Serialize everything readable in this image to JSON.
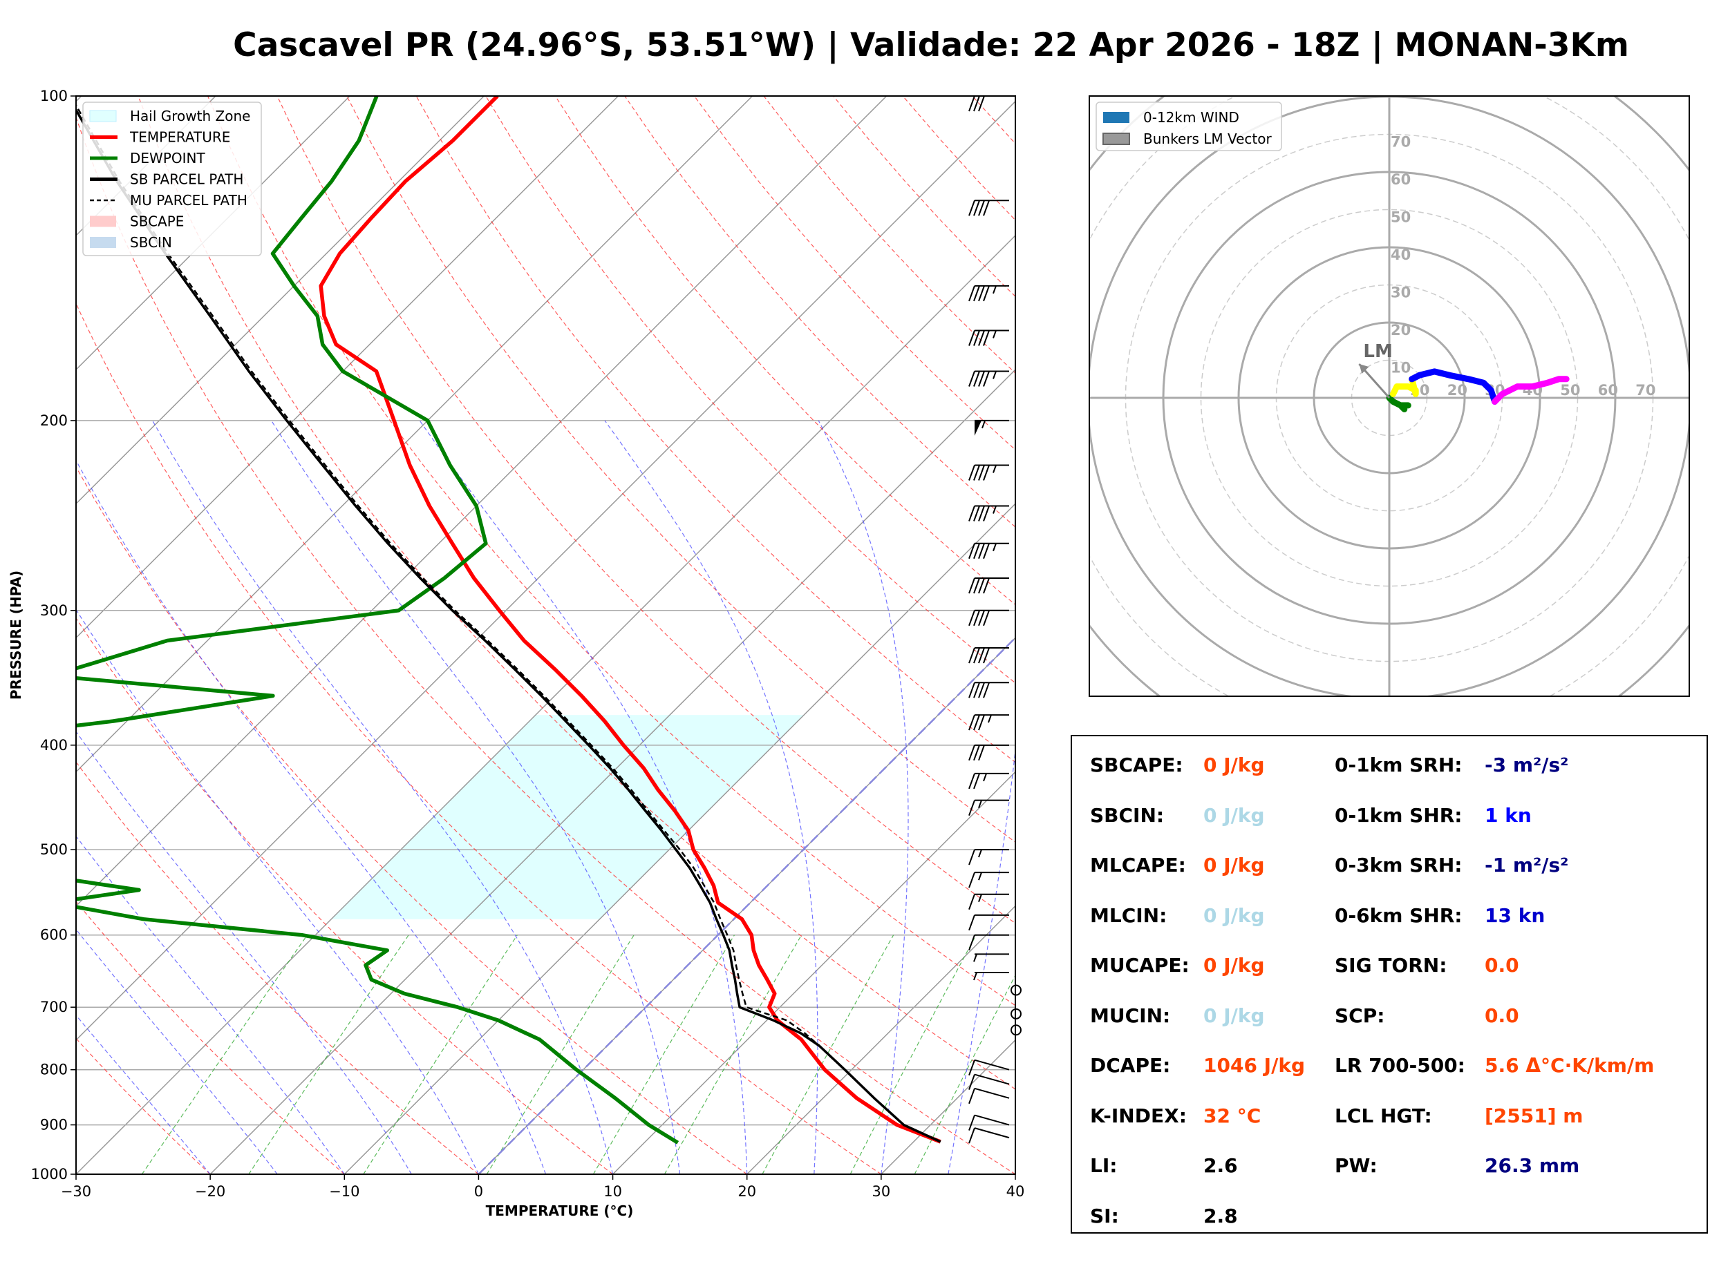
{
  "title": "Cascavel PR (24.96°S, 53.51°W) | Validade: 22 Apr 2026 - 18Z | MONAN-3Km",
  "skewt": {
    "xlabel": "TEMPERATURE (°C)",
    "ylabel": "PRESSURE (HPA)",
    "pressure_ticks": [
      "100",
      "200",
      "300",
      "400",
      "500",
      "600",
      "700",
      "800",
      "900",
      "1000"
    ],
    "temp_ticks": [
      "−30",
      "−20",
      "−10",
      "0",
      "10",
      "20",
      "30",
      "40"
    ],
    "legend": [
      {
        "label": "Hail Growth Zone",
        "color": "#e0ffff",
        "style": "patch"
      },
      {
        "label": "TEMPERATURE",
        "color": "#ff0000",
        "style": "line"
      },
      {
        "label": "DEWPOINT",
        "color": "#008000",
        "style": "line"
      },
      {
        "label": "SB PARCEL PATH",
        "color": "#000000",
        "style": "line"
      },
      {
        "label": "MU PARCEL PATH",
        "color": "#000000",
        "style": "dashed"
      },
      {
        "label": "SBCAPE",
        "color": "#ffcccc",
        "style": "patch"
      },
      {
        "label": "SBCIN",
        "color": "#c6dbef",
        "style": "patch"
      }
    ]
  },
  "hodograph": {
    "legend": [
      {
        "label": "0-12km WIND",
        "color": "#1f77b4"
      },
      {
        "label": "Bunkers LM Vector",
        "color": "#999999"
      }
    ],
    "ring_labels": [
      "10",
      "20",
      "30",
      "40",
      "50",
      "60",
      "70"
    ],
    "lm_label": "LM"
  },
  "params": {
    "left": [
      {
        "label": "SBCAPE:",
        "value": "0 J/kg",
        "color": "#ff4500"
      },
      {
        "label": "SBCIN:",
        "value": "0 J/kg",
        "color": "#add8e6"
      },
      {
        "label": "MLCAPE:",
        "value": "0 J/kg",
        "color": "#ff4500"
      },
      {
        "label": "MLCIN:",
        "value": "0 J/kg",
        "color": "#add8e6"
      },
      {
        "label": "MUCAPE:",
        "value": "0 J/kg",
        "color": "#ff4500"
      },
      {
        "label": "MUCIN:",
        "value": "0 J/kg",
        "color": "#add8e6"
      },
      {
        "label": "DCAPE:",
        "value": "1046 J/kg",
        "color": "#ff4500"
      },
      {
        "label": "K-INDEX:",
        "value": "32 °C",
        "color": "#ff4500"
      },
      {
        "label": "LI:",
        "value": "2.6",
        "color": "#000000"
      },
      {
        "label": "SI:",
        "value": "2.8",
        "color": "#000000"
      }
    ],
    "right": [
      {
        "label": "0-1km SRH:",
        "value": "-3 m²/s²",
        "color": "#000080"
      },
      {
        "label": "0-1km SHR:",
        "value": "1 kn",
        "color": "#0000ff"
      },
      {
        "label": "0-3km SRH:",
        "value": "-1 m²/s²",
        "color": "#000080"
      },
      {
        "label": "0-6km SHR:",
        "value": "13 kn",
        "color": "#0000cd"
      },
      {
        "label": "SIG TORN:",
        "value": "0.0",
        "color": "#ff4500"
      },
      {
        "label": "SCP:",
        "value": "0.0",
        "color": "#ff4500"
      },
      {
        "label": "LR 700-500:",
        "value": "5.6 Δ°C·K/km/m",
        "color": "#ff4500"
      },
      {
        "label": "LCL HGT:",
        "value": "[2551] m",
        "color": "#ff4500"
      },
      {
        "label": "PW:",
        "value": "26.3 mm",
        "color": "#000080"
      }
    ]
  },
  "chart_data": [
    {
      "type": "line",
      "title": "",
      "xlabel": "TEMPERATURE (°C)",
      "ylabel": "PRESSURE (HPA)",
      "xlim": [
        -30,
        40
      ],
      "ylim": [
        1000,
        100
      ],
      "y_scale": "log",
      "series": [
        {
          "name": "TEMPERATURE",
          "color": "#ff0000",
          "p": [
            933,
            900,
            850,
            800,
            750,
            720,
            700,
            680,
            660,
            640,
            620,
            600,
            580,
            560,
            540,
            520,
            500,
            480,
            460,
            440,
            420,
            400,
            380,
            360,
            340,
            320,
            300,
            280,
            260,
            240,
            220,
            200,
            180,
            170,
            160,
            150,
            140,
            130,
            120,
            110,
            100
          ],
          "t": [
            32.0,
            27.5,
            22.5,
            18.0,
            14.0,
            10.8,
            9.2,
            8.6,
            7.0,
            5.3,
            3.8,
            2.5,
            0.6,
            -2.4,
            -4.0,
            -6.0,
            -8.2,
            -10.0,
            -12.5,
            -15.3,
            -18.0,
            -21.2,
            -24.4,
            -28.0,
            -32.0,
            -36.4,
            -40.5,
            -44.8,
            -49.0,
            -53.5,
            -58.0,
            -62.5,
            -67.5,
            -72.5,
            -75.5,
            -78.0,
            -79.0,
            -79.3,
            -79.5,
            -79.0,
            -79.0
          ]
        },
        {
          "name": "DEWPOINT",
          "color": "#008000",
          "p": [
            935,
            900,
            850,
            800,
            750,
            720,
            700,
            680,
            660,
            640,
            620,
            600,
            580,
            560,
            545,
            530,
            500,
            480,
            460,
            440,
            420,
            400,
            380,
            360,
            345,
            320,
            300,
            280,
            260,
            240,
            220,
            200,
            180,
            170,
            160,
            150,
            140,
            130,
            120,
            110,
            100
          ],
          "t": [
            12.5,
            9.0,
            4.5,
            -0.5,
            -5.5,
            -10.0,
            -14.0,
            -19.0,
            -22.5,
            -24.0,
            -23.5,
            -31.0,
            -44.0,
            -52.0,
            -46.5,
            -54.0,
            -71.0,
            -85.0,
            -91.0,
            -77.0,
            -80.0,
            -74.0,
            -61.0,
            -51.0,
            -69.0,
            -63.0,
            -48.0,
            -47.0,
            -46.5,
            -50.0,
            -55.0,
            -60.0,
            -70.0,
            -73.5,
            -76.0,
            -80.0,
            -84.0,
            -84.5,
            -85.0,
            -86.0,
            -88.0
          ]
        },
        {
          "name": "SB PARCEL PATH",
          "color": "#000000",
          "p": [
            933,
            900,
            850,
            800,
            760,
            740,
            720,
            700,
            680,
            660,
            640,
            620,
            600,
            580,
            560,
            540,
            520,
            500,
            480,
            460,
            440,
            420,
            400,
            380,
            360,
            340,
            320,
            300,
            280,
            260,
            240,
            220,
            200,
            180,
            160,
            140,
            120,
            100
          ],
          "t": [
            32.0,
            28.0,
            23.8,
            19.5,
            15.8,
            13.5,
            10.5,
            7.0,
            5.8,
            4.6,
            3.3,
            2.0,
            0.4,
            -1.3,
            -3.0,
            -5.0,
            -7.1,
            -9.5,
            -12.0,
            -14.7,
            -17.5,
            -20.5,
            -23.8,
            -27.3,
            -31.0,
            -35.0,
            -39.3,
            -44.0,
            -48.8,
            -53.8,
            -59.0,
            -64.5,
            -70.5,
            -77.0,
            -84.0,
            -92.0,
            -101.0,
            -111.0
          ]
        },
        {
          "name": "MU PARCEL PATH",
          "color": "#000000",
          "p": [
            933,
            900,
            850,
            800,
            760,
            740,
            720,
            700,
            680,
            660,
            640,
            620,
            600,
            580,
            560,
            540,
            520,
            500,
            480,
            460,
            440,
            420,
            400,
            380,
            360,
            340,
            320,
            300,
            280,
            260,
            240,
            220,
            200,
            180,
            160,
            140,
            120,
            100
          ],
          "t": [
            32.0,
            28.0,
            23.8,
            19.5,
            15.8,
            13.8,
            11.5,
            7.5,
            6.2,
            4.9,
            3.6,
            2.3,
            0.7,
            -1.0,
            -2.7,
            -4.7,
            -6.8,
            -9.2,
            -11.8,
            -14.5,
            -17.3,
            -20.3,
            -23.6,
            -27.1,
            -30.8,
            -34.8,
            -39.1,
            -43.8,
            -48.6,
            -53.6,
            -58.8,
            -64.3,
            -70.3,
            -76.8,
            -83.8,
            -91.8,
            -100.8,
            -110.8
          ]
        }
      ],
      "hail_growth_zone": {
        "p_top": 375,
        "p_bottom": 580,
        "t_min": -30,
        "t_max": -10,
        "color": "#e0ffff"
      },
      "wind_barbs": [
        {
          "p": 100,
          "speed": 30
        },
        {
          "p": 125,
          "speed": 40
        },
        {
          "p": 150,
          "speed": 45
        },
        {
          "p": 165,
          "speed": 45
        },
        {
          "p": 180,
          "speed": 45
        },
        {
          "p": 200,
          "speed": 55
        },
        {
          "p": 220,
          "speed": 45
        },
        {
          "p": 240,
          "speed": 45
        },
        {
          "p": 260,
          "speed": 45
        },
        {
          "p": 280,
          "speed": 40
        },
        {
          "p": 300,
          "speed": 40
        },
        {
          "p": 325,
          "speed": 40
        },
        {
          "p": 350,
          "speed": 40
        },
        {
          "p": 375,
          "speed": 35
        },
        {
          "p": 400,
          "speed": 30
        },
        {
          "p": 425,
          "speed": 25
        },
        {
          "p": 450,
          "speed": 15
        },
        {
          "p": 500,
          "speed": 15
        },
        {
          "p": 525,
          "speed": 15
        },
        {
          "p": 550,
          "speed": 15
        },
        {
          "p": 575,
          "speed": 10
        },
        {
          "p": 600,
          "speed": 10
        },
        {
          "p": 625,
          "speed": 5
        },
        {
          "p": 650,
          "speed": 5
        },
        {
          "p": 675,
          "speed": 0
        },
        {
          "p": 710,
          "speed": 0
        },
        {
          "p": 735,
          "speed": 0
        },
        {
          "p": 800,
          "speed": 10
        },
        {
          "p": 825,
          "speed": 10
        },
        {
          "p": 850,
          "speed": 10
        },
        {
          "p": 900,
          "speed": 10
        },
        {
          "p": 925,
          "speed": 10
        }
      ]
    },
    {
      "type": "line",
      "title": "",
      "name": "hodograph",
      "xlim": [
        -80,
        80
      ],
      "ylim": [
        -80,
        80
      ],
      "rings": [
        10,
        20,
        30,
        40,
        50,
        60,
        70,
        80,
        90,
        100
      ],
      "segments": [
        {
          "color": "#008000",
          "u": [
            4,
            3,
            1,
            0,
            1,
            3,
            5
          ],
          "v": [
            -3,
            -2,
            -1,
            0,
            -1,
            -2,
            -2
          ]
        },
        {
          "color": "#ffff00",
          "u": [
            1,
            2,
            5,
            7,
            7,
            6
          ],
          "v": [
            1,
            3,
            3,
            2,
            1,
            5
          ]
        },
        {
          "color": "#0000ff",
          "u": [
            6,
            8,
            12,
            16,
            21,
            25,
            27,
            28
          ],
          "v": [
            5,
            6,
            7,
            6,
            5,
            4,
            2,
            -1
          ]
        },
        {
          "color": "#ff00ff",
          "u": [
            28,
            30,
            34,
            38,
            42,
            45,
            47
          ],
          "v": [
            -1,
            1,
            3,
            3,
            4,
            5,
            5
          ]
        }
      ],
      "bunkers_lm": {
        "u": -8,
        "v": 9
      }
    }
  ]
}
